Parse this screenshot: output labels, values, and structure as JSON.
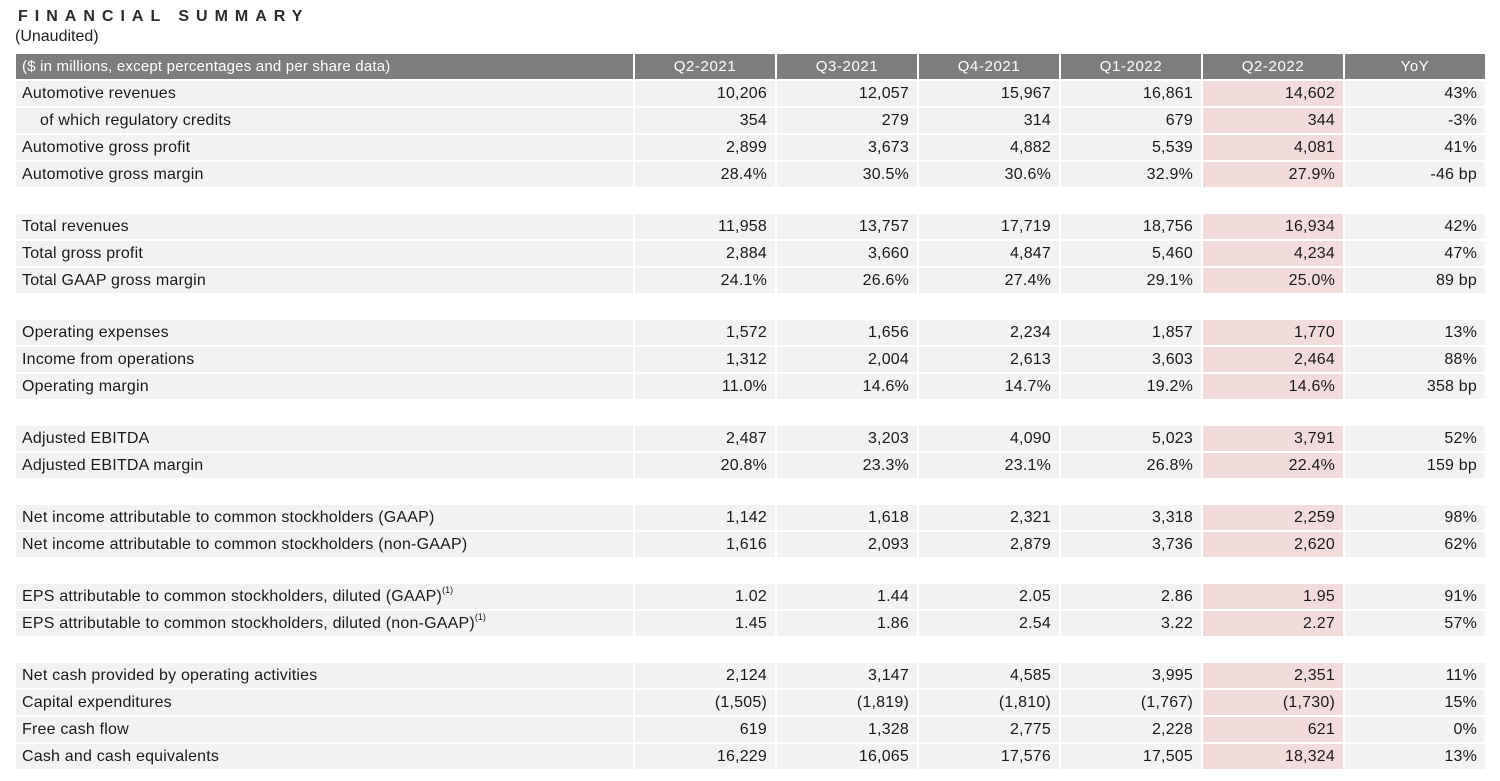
{
  "title": "FINANCIAL SUMMARY",
  "subtitle": "(Unaudited)",
  "colors": {
    "header_bg": "#7d7d7d",
    "header_text": "#ffffff",
    "row_bg": "#f2f2f2",
    "highlight_bg": "#f2dcdb",
    "text": "#1a1a1a"
  },
  "table": {
    "header": {
      "label_note": "($ in millions, except percentages and per share data)",
      "columns": [
        "Q2-2021",
        "Q3-2021",
        "Q4-2021",
        "Q1-2022",
        "Q2-2022",
        "YoY"
      ]
    },
    "highlight_column": 4,
    "sections": [
      {
        "rows": [
          {
            "label": "Automotive revenues",
            "values": [
              "10,206",
              "12,057",
              "15,967",
              "16,861",
              "14,602",
              "43%"
            ]
          },
          {
            "label": "of which regulatory credits",
            "indent": true,
            "values": [
              "354",
              "279",
              "314",
              "679",
              "344",
              "-3%"
            ]
          },
          {
            "label": "Automotive gross profit",
            "values": [
              "2,899",
              "3,673",
              "4,882",
              "5,539",
              "4,081",
              "41%"
            ]
          },
          {
            "label": "Automotive gross margin",
            "values": [
              "28.4%",
              "30.5%",
              "30.6%",
              "32.9%",
              "27.9%",
              "-46 bp"
            ]
          }
        ]
      },
      {
        "rows": [
          {
            "label": "Total revenues",
            "values": [
              "11,958",
              "13,757",
              "17,719",
              "18,756",
              "16,934",
              "42%"
            ]
          },
          {
            "label": "Total gross profit",
            "values": [
              "2,884",
              "3,660",
              "4,847",
              "5,460",
              "4,234",
              "47%"
            ]
          },
          {
            "label": "Total GAAP gross margin",
            "values": [
              "24.1%",
              "26.6%",
              "27.4%",
              "29.1%",
              "25.0%",
              "89 bp"
            ]
          }
        ]
      },
      {
        "rows": [
          {
            "label": "Operating expenses",
            "values": [
              "1,572",
              "1,656",
              "2,234",
              "1,857",
              "1,770",
              "13%"
            ]
          },
          {
            "label": "Income from operations",
            "values": [
              "1,312",
              "2,004",
              "2,613",
              "3,603",
              "2,464",
              "88%"
            ]
          },
          {
            "label": "Operating margin",
            "values": [
              "11.0%",
              "14.6%",
              "14.7%",
              "19.2%",
              "14.6%",
              "358 bp"
            ]
          }
        ]
      },
      {
        "rows": [
          {
            "label": "Adjusted EBITDA",
            "values": [
              "2,487",
              "3,203",
              "4,090",
              "5,023",
              "3,791",
              "52%"
            ]
          },
          {
            "label": "Adjusted EBITDA margin",
            "values": [
              "20.8%",
              "23.3%",
              "23.1%",
              "26.8%",
              "22.4%",
              "159 bp"
            ]
          }
        ]
      },
      {
        "rows": [
          {
            "label": "Net income attributable to common stockholders (GAAP)",
            "values": [
              "1,142",
              "1,618",
              "2,321",
              "3,318",
              "2,259",
              "98%"
            ]
          },
          {
            "label": "Net income attributable to common stockholders (non-GAAP)",
            "values": [
              "1,616",
              "2,093",
              "2,879",
              "3,736",
              "2,620",
              "62%"
            ]
          }
        ]
      },
      {
        "rows": [
          {
            "label": "EPS attributable to common stockholders, diluted (GAAP)",
            "sup": "(1)",
            "values": [
              "1.02",
              "1.44",
              "2.05",
              "2.86",
              "1.95",
              "91%"
            ]
          },
          {
            "label": "EPS attributable to common stockholders, diluted (non-GAAP)",
            "sup": "(1)",
            "values": [
              "1.45",
              "1.86",
              "2.54",
              "3.22",
              "2.27",
              "57%"
            ]
          }
        ]
      },
      {
        "rows": [
          {
            "label": "Net cash provided by operating activities",
            "values": [
              "2,124",
              "3,147",
              "4,585",
              "3,995",
              "2,351",
              "11%"
            ]
          },
          {
            "label": "Capital expenditures",
            "values": [
              "(1,505)",
              "(1,819)",
              "(1,810)",
              "(1,767)",
              "(1,730)",
              "15%"
            ]
          },
          {
            "label": "Free cash flow",
            "values": [
              "619",
              "1,328",
              "2,775",
              "2,228",
              "621",
              "0%"
            ]
          },
          {
            "label": "Cash and cash equivalents",
            "values": [
              "16,229",
              "16,065",
              "17,576",
              "17,505",
              "18,324",
              "13%"
            ]
          }
        ]
      }
    ]
  }
}
